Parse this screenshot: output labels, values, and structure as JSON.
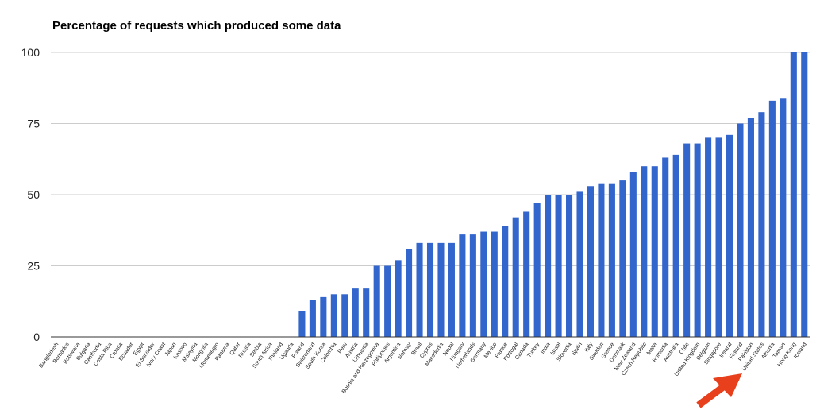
{
  "chart_data": {
    "type": "bar",
    "title": "Percentage of requests which produced some data",
    "xlabel": "",
    "ylabel": "",
    "ylim": [
      0,
      100
    ],
    "yticks": [
      0,
      25,
      50,
      75,
      100
    ],
    "grid": true,
    "bar_color": "#3366cc",
    "annotation_color": "#e8401c",
    "annotation": "arrow pointing to United States",
    "categories": [
      "Bangladesh",
      "Barbados",
      "Botswana",
      "Bulgaria",
      "Cambodia",
      "Costa Rica",
      "Croatia",
      "Ecuador",
      "Egypt",
      "El Salvador",
      "Ivory Coast",
      "Japan",
      "Kosovo",
      "Malaysia",
      "Mongolia",
      "Montenegro",
      "Panama",
      "Qatar",
      "Russia",
      "Serbia",
      "South Africa",
      "Thailand",
      "Uganda",
      "Poland",
      "Switzerland",
      "South Korea",
      "Colombia",
      "Peru",
      "Austria",
      "Lithuania",
      "Bosnia and Herzegovina",
      "Philippines",
      "Argentina",
      "Norway",
      "Brazil",
      "Cyprus",
      "Macedonia",
      "Nepal",
      "Hungary",
      "Netherlands",
      "Germany",
      "Mexico",
      "France",
      "Portugal",
      "Canada",
      "Turkey",
      "India",
      "Israel",
      "Slovenia",
      "Spain",
      "Italy",
      "Sweden",
      "Greece",
      "Denmark",
      "New Zealand",
      "Czech Republic",
      "Malta",
      "Romania",
      "Australia",
      "Chile",
      "United Kingdom",
      "Belgium",
      "Singapore",
      "Ireland",
      "Finland",
      "Pakistan",
      "United States",
      "Albania",
      "Taiwan",
      "Hong Kong",
      "Iceland"
    ],
    "values": [
      0,
      0,
      0,
      0,
      0,
      0,
      0,
      0,
      0,
      0,
      0,
      0,
      0,
      0,
      0,
      0,
      0,
      0,
      0,
      0,
      0,
      0,
      0,
      9,
      13,
      14,
      15,
      15,
      17,
      17,
      25,
      25,
      27,
      31,
      33,
      33,
      33,
      33,
      36,
      36,
      37,
      37,
      39,
      42,
      44,
      47,
      50,
      50,
      50,
      51,
      53,
      54,
      54,
      55,
      58,
      60,
      60,
      63,
      64,
      68,
      68,
      70,
      70,
      71,
      75,
      77,
      79,
      83,
      84,
      100,
      100
    ]
  }
}
